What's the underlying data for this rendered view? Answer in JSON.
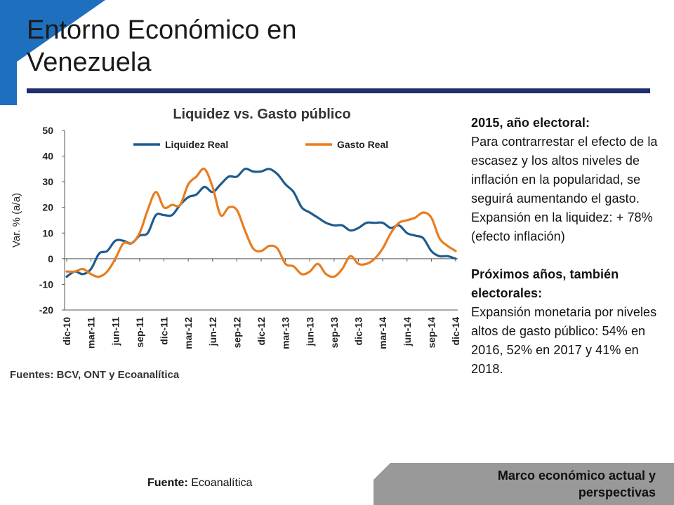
{
  "slide": {
    "title": "Entorno Económico en Venezuela",
    "footer_source_label": "Fuente:",
    "footer_source_value": "Ecoanalítica",
    "footer_band_text": "Marco económico actual y perspectivas",
    "colors": {
      "accent": "#1f6fbf",
      "rule": "#1f2f6b",
      "band": "#999999"
    }
  },
  "side_text": {
    "heading1": "2015, año electoral:",
    "para1": "Para contrarrestar el efecto de la escasez y los altos niveles de inflación en la popularidad, se seguirá aumentando el gasto.",
    "para2": "Expansión en la liquidez: + 78% (efecto inflación)",
    "heading2": "Próximos años, también electorales:",
    "para3": "Expansión monetaria por niveles altos de gasto público: 54% en 2016, 52% en 2017 y 41% en 2018."
  },
  "chart_data": {
    "type": "line",
    "title": "Liquidez vs. Gasto público",
    "xlabel": "",
    "ylabel": "Var. % (a/a)",
    "ylim": [
      -20,
      50
    ],
    "yticks": [
      "50",
      "40",
      "30",
      "20",
      "10",
      "0",
      "-10",
      "-20"
    ],
    "xticks": [
      "dic-10",
      "mar-11",
      "jun-11",
      "sep-11",
      "dic-11",
      "mar-12",
      "jun-12",
      "sep-12",
      "dic-12",
      "mar-13",
      "jun-13",
      "sep-13",
      "dic-13",
      "mar-14",
      "jun-14",
      "sep-14",
      "dic-14"
    ],
    "x": [
      "dic-10",
      "ene-11",
      "feb-11",
      "mar-11",
      "abr-11",
      "may-11",
      "jun-11",
      "jul-11",
      "ago-11",
      "sep-11",
      "oct-11",
      "nov-11",
      "dic-11",
      "ene-12",
      "feb-12",
      "mar-12",
      "abr-12",
      "may-12",
      "jun-12",
      "jul-12",
      "ago-12",
      "sep-12",
      "oct-12",
      "nov-12",
      "dic-12",
      "ene-13",
      "feb-13",
      "mar-13",
      "abr-13",
      "may-13",
      "jun-13",
      "jul-13",
      "ago-13",
      "sep-13",
      "oct-13",
      "nov-13",
      "dic-13",
      "ene-14",
      "feb-14",
      "mar-14",
      "abr-14",
      "may-14",
      "jun-14",
      "jul-14",
      "ago-14",
      "sep-14",
      "oct-14",
      "nov-14",
      "dic-14"
    ],
    "grid": false,
    "legend_position": "top",
    "series": [
      {
        "name": "Liquidez Real",
        "color": "#1f5b8f",
        "values": [
          -7,
          -5,
          -6,
          -4,
          2,
          3,
          7,
          7,
          6,
          9,
          10,
          17,
          17,
          17,
          21,
          24,
          25,
          28,
          26,
          29,
          32,
          32,
          35,
          34,
          34,
          35,
          33,
          29,
          26,
          20,
          18,
          16,
          14,
          13,
          13,
          11,
          12,
          14,
          14,
          14,
          12,
          13,
          10,
          9,
          8,
          3,
          1,
          1,
          0
        ]
      },
      {
        "name": "Gasto Real",
        "color": "#e87d1e",
        "values": [
          -5,
          -5,
          -4,
          -6,
          -7,
          -5,
          0,
          6,
          6,
          10,
          19,
          26,
          20,
          21,
          21,
          29,
          32,
          35,
          28,
          17,
          20,
          19,
          11,
          4,
          3,
          5,
          4,
          -2,
          -3,
          -6,
          -5,
          -2,
          -6,
          -7,
          -4,
          1,
          -2,
          -2,
          0,
          4,
          10,
          14,
          15,
          16,
          18,
          16,
          8,
          5,
          3
        ]
      }
    ],
    "source_note": "Fuentes: BCV, ONT  y Ecoanalítica"
  }
}
